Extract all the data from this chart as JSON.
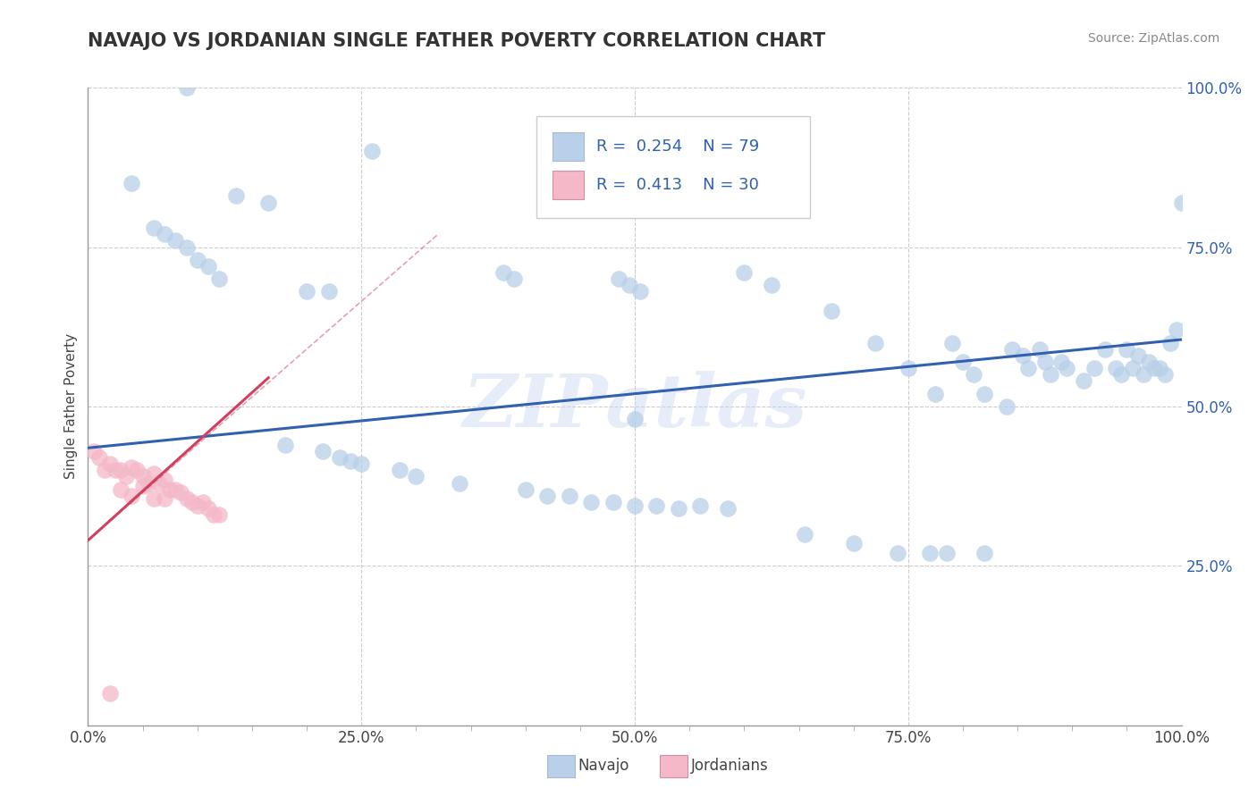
{
  "title": "NAVAJO VS JORDANIAN SINGLE FATHER POVERTY CORRELATION CHART",
  "source": "Source: ZipAtlas.com",
  "ylabel": "Single Father Poverty",
  "xlim": [
    0.0,
    1.0
  ],
  "ylim": [
    0.0,
    1.0
  ],
  "x_tick_labels": [
    "0.0%",
    "",
    "",
    "",
    "",
    "25.0%",
    "",
    "",
    "",
    "",
    "50.0%",
    "",
    "",
    "",
    "",
    "75.0%",
    "",
    "",
    "",
    "",
    "100.0%"
  ],
  "x_tick_positions": [
    0.0,
    0.05,
    0.1,
    0.15,
    0.2,
    0.25,
    0.3,
    0.35,
    0.4,
    0.45,
    0.5,
    0.55,
    0.6,
    0.65,
    0.7,
    0.75,
    0.8,
    0.85,
    0.9,
    0.95,
    1.0
  ],
  "y_tick_labels": [
    "100.0%",
    "75.0%",
    "50.0%",
    "25.0%"
  ],
  "y_tick_positions": [
    1.0,
    0.75,
    0.5,
    0.25
  ],
  "navajo_R": "0.254",
  "navajo_N": "79",
  "jordanian_R": "0.413",
  "jordanian_N": "30",
  "navajo_color": "#b8d0e8",
  "jordanian_color": "#f4b8c8",
  "navajo_line_color": "#3060b0",
  "jordanian_line_color": "#d04060",
  "R_N_color": "#3060b0",
  "watermark": "ZIPatlas",
  "navajo_trend_x0": 0.0,
  "navajo_trend_y0": 0.435,
  "navajo_trend_x1": 1.0,
  "navajo_trend_y1": 0.605,
  "jordanian_trend_x0": 0.0,
  "jordanian_trend_y0": 0.29,
  "jordanian_trend_x1": 0.165,
  "jordanian_trend_y1": 0.545,
  "navajo_x": [
    0.09,
    0.26,
    0.04,
    0.135,
    0.165,
    0.06,
    0.07,
    0.08,
    0.09,
    0.1,
    0.11,
    0.12,
    0.2,
    0.22,
    0.38,
    0.39,
    0.485,
    0.495,
    0.5,
    0.505,
    0.6,
    0.625,
    0.68,
    0.72,
    0.75,
    0.775,
    0.79,
    0.8,
    0.81,
    0.82,
    0.84,
    0.845,
    0.855,
    0.86,
    0.87,
    0.875,
    0.88,
    0.89,
    0.895,
    0.91,
    0.92,
    0.93,
    0.94,
    0.945,
    0.95,
    0.955,
    0.96,
    0.965,
    0.97,
    0.975,
    0.98,
    0.985,
    0.99,
    0.995,
    1.0,
    0.18,
    0.215,
    0.23,
    0.24,
    0.25,
    0.285,
    0.3,
    0.34,
    0.4,
    0.42,
    0.44,
    0.46,
    0.48,
    0.5,
    0.52,
    0.54,
    0.56,
    0.585,
    0.655,
    0.7,
    0.74,
    0.77,
    0.785,
    0.82
  ],
  "navajo_y": [
    1.0,
    0.9,
    0.85,
    0.83,
    0.82,
    0.78,
    0.77,
    0.76,
    0.75,
    0.73,
    0.72,
    0.7,
    0.68,
    0.68,
    0.71,
    0.7,
    0.7,
    0.69,
    0.48,
    0.68,
    0.71,
    0.69,
    0.65,
    0.6,
    0.56,
    0.52,
    0.6,
    0.57,
    0.55,
    0.52,
    0.5,
    0.59,
    0.58,
    0.56,
    0.59,
    0.57,
    0.55,
    0.57,
    0.56,
    0.54,
    0.56,
    0.59,
    0.56,
    0.55,
    0.59,
    0.56,
    0.58,
    0.55,
    0.57,
    0.56,
    0.56,
    0.55,
    0.6,
    0.62,
    0.82,
    0.44,
    0.43,
    0.42,
    0.415,
    0.41,
    0.4,
    0.39,
    0.38,
    0.37,
    0.36,
    0.36,
    0.35,
    0.35,
    0.345,
    0.345,
    0.34,
    0.345,
    0.34,
    0.3,
    0.285,
    0.27,
    0.27,
    0.27,
    0.27
  ],
  "jordanian_x": [
    0.005,
    0.01,
    0.015,
    0.02,
    0.025,
    0.03,
    0.035,
    0.04,
    0.045,
    0.05,
    0.055,
    0.06,
    0.065,
    0.07,
    0.075,
    0.08,
    0.085,
    0.09,
    0.095,
    0.1,
    0.105,
    0.11,
    0.115,
    0.12,
    0.03,
    0.04,
    0.05,
    0.06,
    0.07,
    0.02
  ],
  "jordanian_y": [
    0.43,
    0.42,
    0.4,
    0.41,
    0.4,
    0.4,
    0.39,
    0.405,
    0.4,
    0.39,
    0.38,
    0.395,
    0.38,
    0.385,
    0.37,
    0.37,
    0.365,
    0.355,
    0.35,
    0.345,
    0.35,
    0.34,
    0.33,
    0.33,
    0.37,
    0.36,
    0.375,
    0.355,
    0.355,
    0.05
  ]
}
